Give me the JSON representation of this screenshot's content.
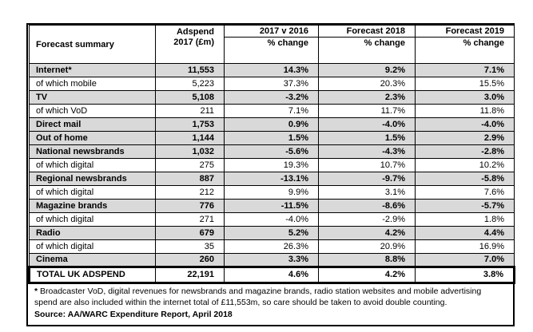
{
  "chart_data": {
    "type": "table",
    "title": "Forecast summary",
    "columns": [
      "Forecast summary",
      "Adspend 2017 (£m)",
      "2017 v 2016 % change",
      "Forecast 2018 % change",
      "Forecast 2019 % change"
    ],
    "rows": [
      {
        "label": "Internet*",
        "cells": [
          "11,553",
          "14.3%",
          "9.2%",
          "7.1%"
        ],
        "category": true
      },
      {
        "label": "of which mobile",
        "cells": [
          "5,223",
          "37.3%",
          "20.3%",
          "15.5%"
        ],
        "category": false
      },
      {
        "label": "TV",
        "cells": [
          "5,108",
          "-3.2%",
          "2.3%",
          "3.0%"
        ],
        "category": true
      },
      {
        "label": "of which VoD",
        "cells": [
          "211",
          "7.1%",
          "11.7%",
          "11.8%"
        ],
        "category": false
      },
      {
        "label": "Direct mail",
        "cells": [
          "1,753",
          "0.9%",
          "-4.0%",
          "-4.0%"
        ],
        "category": true
      },
      {
        "label": "Out of home",
        "cells": [
          "1,144",
          "1.5%",
          "1.5%",
          "2.9%"
        ],
        "category": true
      },
      {
        "label": "National newsbrands",
        "cells": [
          "1,032",
          "-5.6%",
          "-4.3%",
          "-2.8%"
        ],
        "category": true
      },
      {
        "label": "of which digital",
        "cells": [
          "275",
          "19.3%",
          "10.7%",
          "10.2%"
        ],
        "category": false
      },
      {
        "label": "Regional newsbrands",
        "cells": [
          "887",
          "-13.1%",
          "-9.7%",
          "-5.8%"
        ],
        "category": true
      },
      {
        "label": "of which digital",
        "cells": [
          "212",
          "9.9%",
          "3.1%",
          "7.6%"
        ],
        "category": false
      },
      {
        "label": "Magazine brands",
        "cells": [
          "776",
          "-11.5%",
          "-8.6%",
          "-5.7%"
        ],
        "category": true
      },
      {
        "label": "of which digital",
        "cells": [
          "271",
          "-4.0%",
          "-2.9%",
          "1.8%"
        ],
        "category": false
      },
      {
        "label": "Radio",
        "cells": [
          "679",
          "5.2%",
          "4.2%",
          "4.4%"
        ],
        "category": true
      },
      {
        "label": "of which digital",
        "cells": [
          "35",
          "26.3%",
          "20.9%",
          "16.9%"
        ],
        "category": false
      },
      {
        "label": "Cinema",
        "cells": [
          "260",
          "3.3%",
          "8.8%",
          "7.0%"
        ],
        "category": true
      }
    ],
    "total": {
      "label": "TOTAL UK ADSPEND",
      "cells": [
        "22,191",
        "4.6%",
        "4.2%",
        "3.8%"
      ]
    }
  },
  "header": {
    "forecast_summary": "Forecast summary",
    "adspend_line1": "Adspend",
    "adspend_line2": "2017 (£m)",
    "col_2017v2016": "2017 v 2016",
    "col_forecast2018": "Forecast 2018",
    "col_forecast2019": "Forecast 2019",
    "pct_change": "% change"
  },
  "footnote": {
    "star": "*",
    "note": " Broadcaster VoD, digital revenues for newsbrands and magazine brands, radio station websites and mobile advertising spend are also included within the internet total of £11,553m, so care should be taken to avoid double counting.",
    "source": "Source: AA/WARC Expenditure Report, April 2018"
  },
  "colors": {
    "row_shade": "#d9d9d9",
    "border": "#000000",
    "background": "#ffffff"
  }
}
